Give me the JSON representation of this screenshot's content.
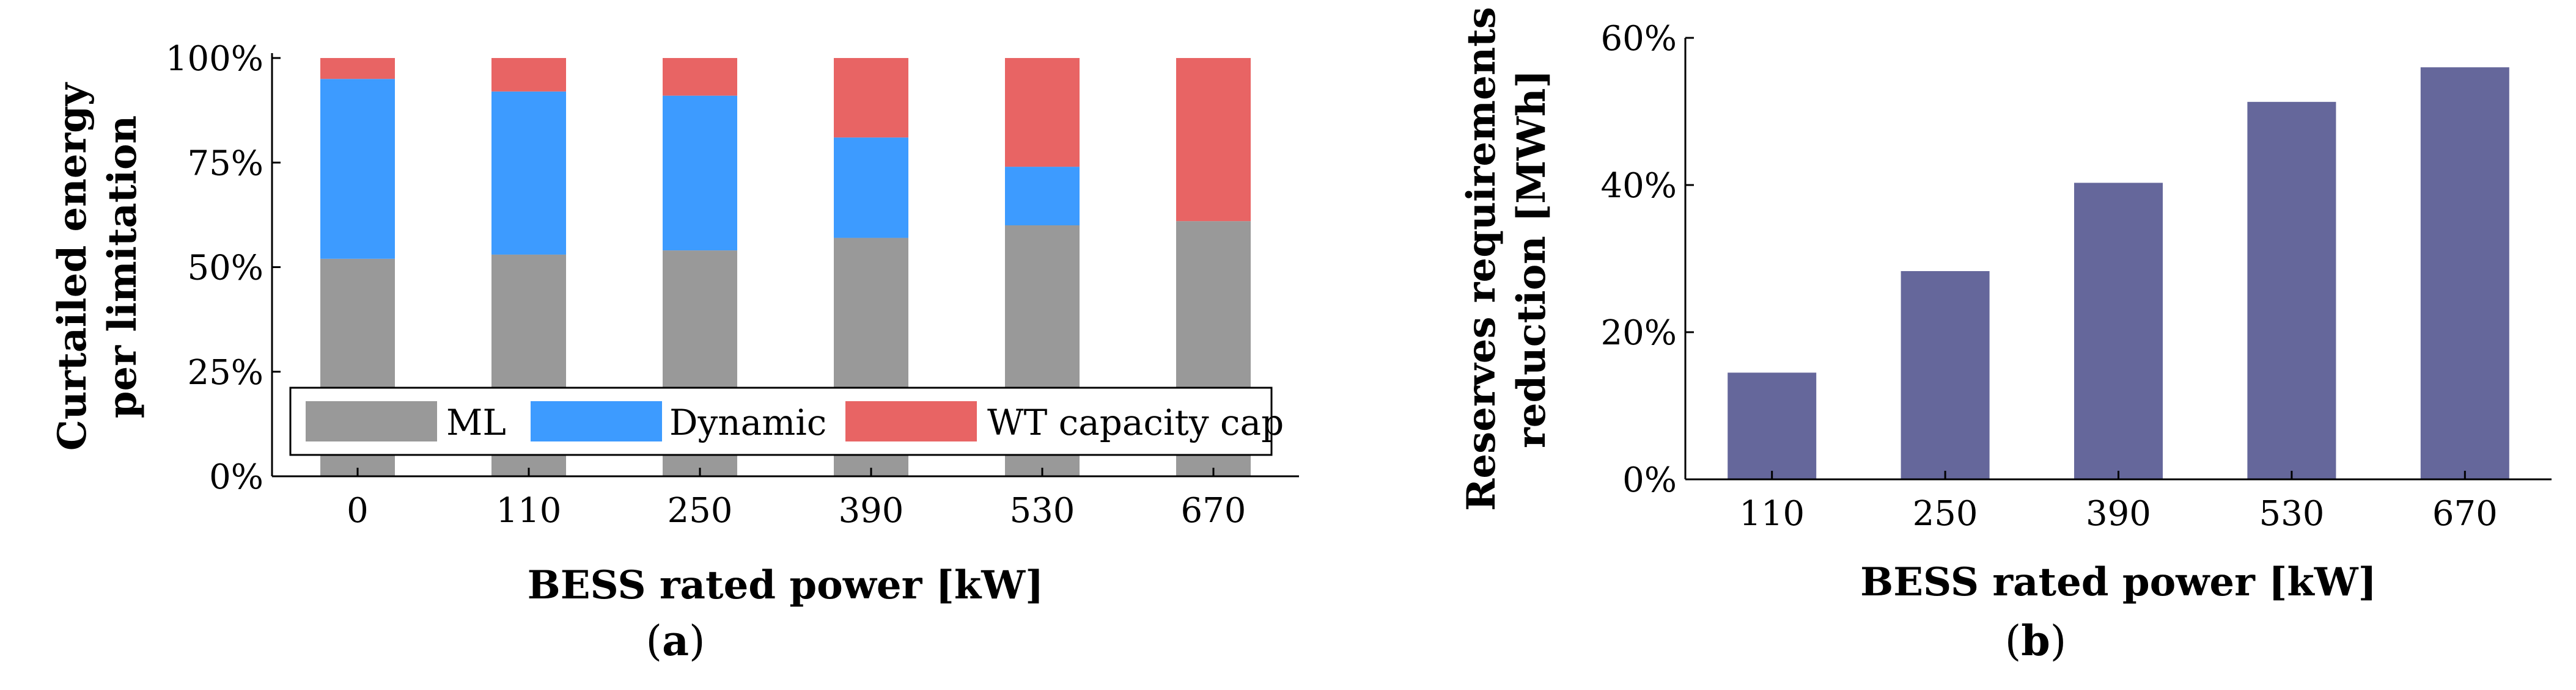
{
  "chart_data": [
    {
      "type": "bar",
      "stacked": true,
      "panel_label_open": "(",
      "panel_label_letter": "a",
      "panel_label_close": ")",
      "categories": [
        "0",
        "110",
        "250",
        "390",
        "530",
        "670"
      ],
      "series": [
        {
          "name": "ML",
          "color": "#999999",
          "values": [
            52,
            53,
            54,
            57,
            60,
            61
          ]
        },
        {
          "name": "Dynamic",
          "color": "#3d9bff",
          "values": [
            43,
            39,
            37,
            24,
            14,
            0
          ]
        },
        {
          "name": "WT capacity cap",
          "color": "#e86464",
          "values": [
            5,
            8,
            9,
            19,
            26,
            39
          ]
        }
      ],
      "ylim": [
        0,
        100
      ],
      "yticks": [
        "0%",
        "25%",
        "50%",
        "75%",
        "100%"
      ],
      "ylabel_line1": "Curtailed energy",
      "ylabel_line2": "per limitation",
      "xlabel": "BESS rated power [kW]",
      "legend_position": "bottom-inside"
    },
    {
      "type": "bar",
      "panel_label_open": "(",
      "panel_label_letter": "b",
      "panel_label_close": ")",
      "categories": [
        "110",
        "250",
        "390",
        "530",
        "670"
      ],
      "values": [
        14.5,
        28.3,
        40.3,
        51.3,
        56.0
      ],
      "color": "#65679b",
      "ylim": [
        0,
        60
      ],
      "yticks": [
        "0%",
        "20%",
        "40%",
        "60%"
      ],
      "ylabel_line1": "Reserves requirements",
      "ylabel_line2": "reduction [MWh]",
      "xlabel": "BESS rated power [kW]"
    }
  ]
}
